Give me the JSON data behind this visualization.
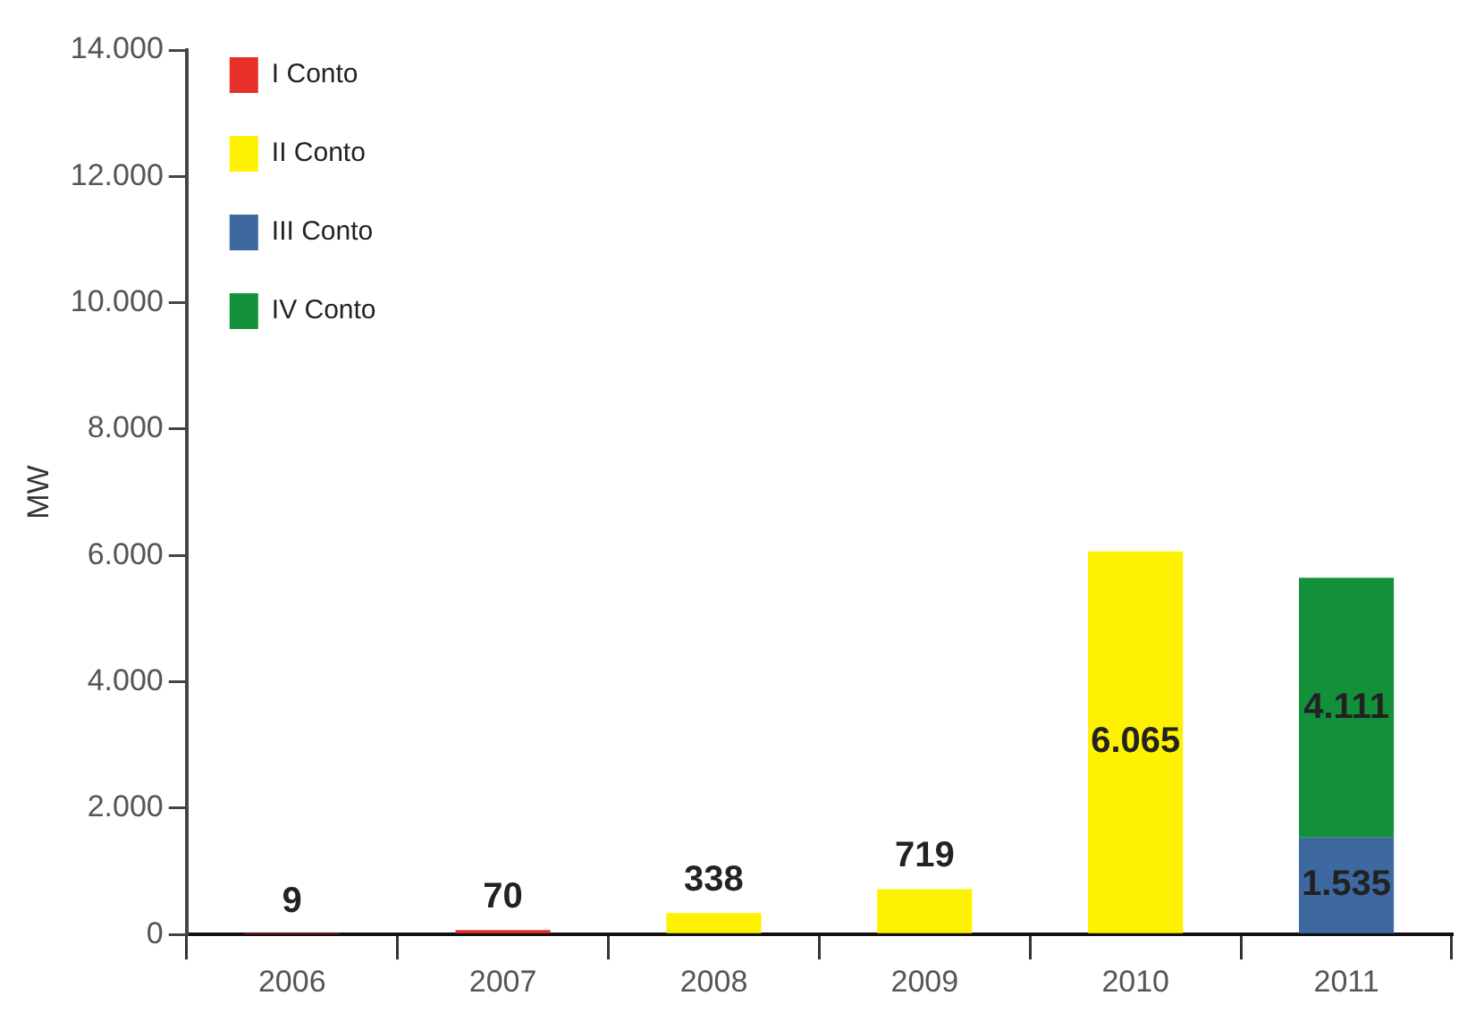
{
  "chart_data": {
    "type": "bar",
    "stacked": true,
    "ylabel": "MW",
    "categories": [
      "2006",
      "2007",
      "2008",
      "2009",
      "2010",
      "2011"
    ],
    "series": [
      {
        "name": "I Conto",
        "color": "#e8302a",
        "values": [
          9,
          70,
          null,
          null,
          null,
          null
        ],
        "value_labels": [
          "9",
          "70",
          null,
          null,
          null,
          null
        ]
      },
      {
        "name": "II Conto",
        "color": "#fff200",
        "values": [
          null,
          null,
          338,
          719,
          6065,
          null
        ],
        "value_labels": [
          null,
          null,
          "338",
          "719",
          "6.065",
          null
        ]
      },
      {
        "name": "III Conto",
        "color": "#3d68a0",
        "values": [
          null,
          null,
          null,
          null,
          null,
          1535
        ],
        "value_labels": [
          null,
          null,
          null,
          null,
          null,
          "1.535"
        ]
      },
      {
        "name": "IV Conto",
        "color": "#13913a",
        "values": [
          null,
          null,
          null,
          null,
          null,
          4111
        ],
        "value_labels": [
          null,
          null,
          null,
          null,
          null,
          "4.111"
        ]
      }
    ],
    "ylim": [
      0,
      14000
    ],
    "yticks": [
      {
        "value": 0,
        "label": "0"
      },
      {
        "value": 2000,
        "label": "2.000"
      },
      {
        "value": 4000,
        "label": "4.000"
      },
      {
        "value": 6000,
        "label": "6.000"
      },
      {
        "value": 8000,
        "label": "8.000"
      },
      {
        "value": 10000,
        "label": "10.000"
      },
      {
        "value": 12000,
        "label": "12.000"
      },
      {
        "value": 14000,
        "label": "14.000"
      }
    ],
    "grid": false,
    "legend": "top left"
  }
}
